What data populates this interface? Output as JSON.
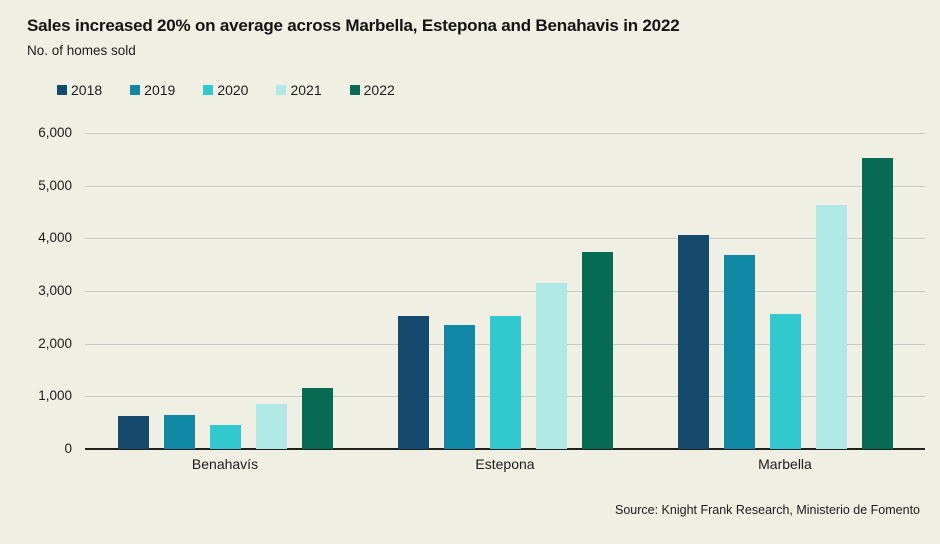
{
  "header": {
    "title": "Sales increased 20% on average across Marbella, Estepona and Benahavis in 2022",
    "subtitle": "No. of homes sold"
  },
  "source": "Source: Knight Frank Research, Ministerio de Fomento",
  "colors": {
    "background": "#efefe3",
    "gridline": "#c9cbc5",
    "axis": "#22221f",
    "text": "#1c1c1c"
  },
  "chart_data": {
    "type": "bar",
    "title": "Sales increased 20% on average across Marbella, Estepona and Benahavis in 2022",
    "subtitle": "No. of homes sold",
    "categories": [
      "Benahavís",
      "Estepona",
      "Marbella"
    ],
    "series": [
      {
        "name": "2018",
        "color": "#15496d",
        "values": [
          620,
          2520,
          4060
        ]
      },
      {
        "name": "2019",
        "color": "#0f87a5",
        "values": [
          640,
          2350,
          3680
        ]
      },
      {
        "name": "2020",
        "color": "#31c9cf",
        "values": [
          450,
          2520,
          2570
        ]
      },
      {
        "name": "2021",
        "color": "#b0e8e5",
        "values": [
          860,
          3150,
          4630
        ]
      },
      {
        "name": "2022",
        "color": "#076b53",
        "values": [
          1150,
          3750,
          5520
        ]
      }
    ],
    "ylim": [
      0,
      6000
    ],
    "yticks": [
      0,
      1000,
      2000,
      3000,
      4000,
      5000,
      6000
    ],
    "ytick_labels": [
      "0",
      "1,000",
      "2,000",
      "3,000",
      "4,000",
      "5,000",
      "6,000"
    ],
    "grid": true,
    "legend_position": "top-left",
    "source": "Source: Knight Frank Research, Ministerio de Fomento"
  }
}
